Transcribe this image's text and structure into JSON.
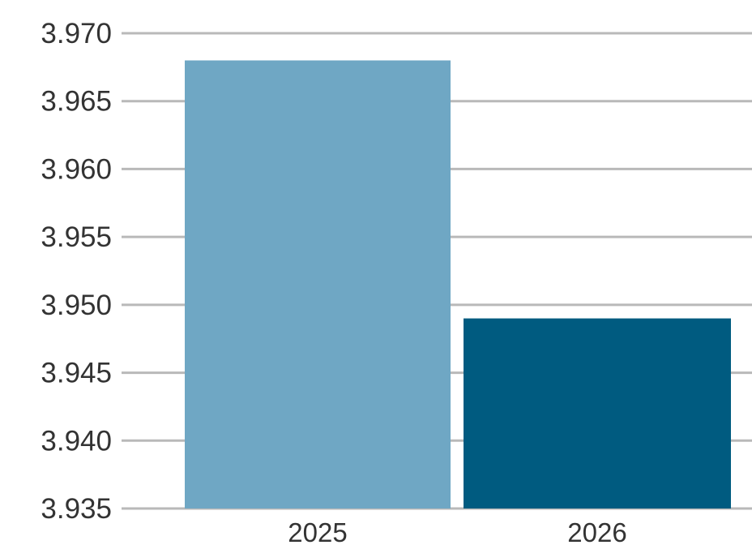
{
  "chart_data": {
    "type": "bar",
    "title": "",
    "xlabel": "",
    "ylabel": "",
    "categories": [
      "2025",
      "2026"
    ],
    "values": [
      3.968,
      3.949
    ],
    "bar_colors": [
      "#6fa7c4",
      "#005b80"
    ],
    "ylim": [
      3.935,
      3.97
    ],
    "yticks": [
      "3.970",
      "3.965",
      "3.960",
      "3.955",
      "3.950",
      "3.945",
      "3.940",
      "3.935"
    ],
    "ytick_values": [
      3.97,
      3.965,
      3.96,
      3.955,
      3.95,
      3.945,
      3.94,
      3.935
    ],
    "grid": true,
    "grid_color": "#b9b9b9",
    "legend": "none"
  }
}
